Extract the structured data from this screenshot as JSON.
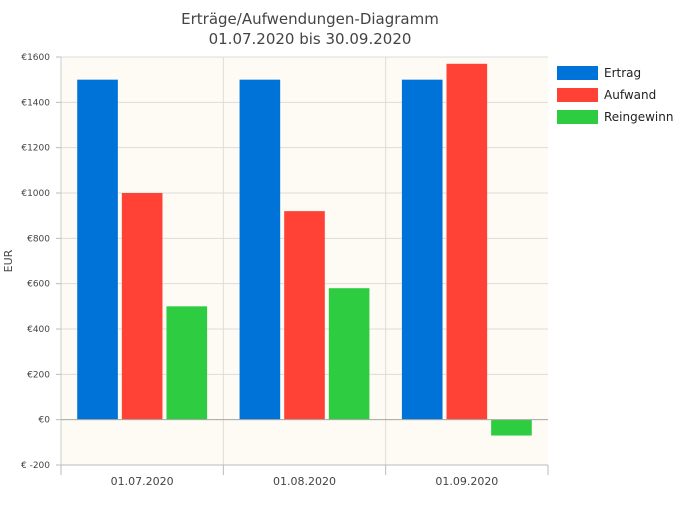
{
  "chart_data": {
    "type": "bar",
    "title_lines": [
      "Erträge/Aufwendungen-Diagramm",
      "01.07.2020 bis 30.09.2020"
    ],
    "xlabel": "",
    "ylabel": "EUR",
    "categories": [
      "01.07.2020",
      "01.08.2020",
      "01.09.2020"
    ],
    "ylim": [
      -200,
      1600
    ],
    "yticks": [
      {
        "value": 1600,
        "label": "€1600"
      },
      {
        "value": 1400,
        "label": "€1400"
      },
      {
        "value": 1200,
        "label": "€1200"
      },
      {
        "value": 1000,
        "label": "€1000"
      },
      {
        "value": 800,
        "label": "€800"
      },
      {
        "value": 600,
        "label": "€600"
      },
      {
        "value": 400,
        "label": "€400"
      },
      {
        "value": 200,
        "label": "€200"
      },
      {
        "value": 0,
        "label": "€0"
      },
      {
        "value": -200,
        "label": "€ -200"
      }
    ],
    "series": [
      {
        "name": "Ertrag",
        "color": "#0073d9",
        "values": [
          1500,
          1500,
          1500
        ]
      },
      {
        "name": "Aufwand",
        "color": "#ff4136",
        "values": [
          1000,
          920,
          1570
        ]
      },
      {
        "name": "Reingewinn",
        "color": "#2ecc40",
        "values": [
          500,
          580,
          -70
        ]
      }
    ],
    "grid": true,
    "legend_position": "right",
    "plot_background": "#fdfbf4"
  }
}
